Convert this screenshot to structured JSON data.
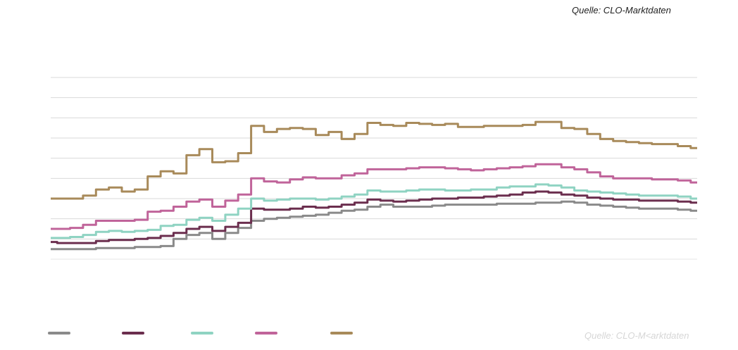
{
  "source_top": "Quelle: CLO-Marktdaten",
  "source_bottom": "Quelle: CLO-M<arktdaten",
  "chart_data": {
    "type": "line",
    "title": "",
    "xlabel": "",
    "ylabel": "",
    "x": [
      0,
      2,
      4,
      6,
      8,
      10,
      12,
      14,
      16,
      18,
      20,
      22,
      24,
      26,
      28,
      30,
      32,
      34,
      36,
      38,
      40,
      42,
      44,
      46,
      48,
      50,
      52,
      54,
      56,
      58,
      60,
      62,
      64,
      66,
      68,
      70,
      72,
      74,
      76,
      78,
      80,
      82,
      84,
      86,
      88,
      90,
      92,
      94,
      96,
      98,
      100
    ],
    "xlim": [
      0,
      100
    ],
    "ylim": [
      0,
      9
    ],
    "grid": true,
    "legend": "bottom-left",
    "series": [
      {
        "color": "#8a8a8a",
        "values": [
          0.5,
          0.5,
          0.5,
          0.5,
          0.55,
          0.55,
          0.55,
          0.6,
          0.6,
          0.65,
          1.0,
          1.2,
          1.3,
          1.0,
          1.3,
          1.55,
          1.9,
          2.0,
          2.05,
          2.1,
          2.15,
          2.2,
          2.3,
          2.4,
          2.45,
          2.6,
          2.7,
          2.6,
          2.6,
          2.6,
          2.65,
          2.7,
          2.7,
          2.7,
          2.7,
          2.75,
          2.75,
          2.75,
          2.8,
          2.8,
          2.85,
          2.8,
          2.7,
          2.65,
          2.6,
          2.55,
          2.5,
          2.5,
          2.5,
          2.45,
          2.4
        ]
      },
      {
        "color": "#6b2e4e",
        "values": [
          0.85,
          0.8,
          0.8,
          0.8,
          0.9,
          0.95,
          0.95,
          1.0,
          1.05,
          1.15,
          1.3,
          1.5,
          1.6,
          1.4,
          1.6,
          1.8,
          2.5,
          2.45,
          2.45,
          2.5,
          2.6,
          2.55,
          2.6,
          2.7,
          2.8,
          2.95,
          2.9,
          2.85,
          2.9,
          2.95,
          3.0,
          3.0,
          3.05,
          3.05,
          3.1,
          3.15,
          3.2,
          3.3,
          3.35,
          3.3,
          3.2,
          3.15,
          3.05,
          3.0,
          2.95,
          2.95,
          2.9,
          2.9,
          2.9,
          2.85,
          2.8
        ]
      },
      {
        "color": "#8fd3c2",
        "values": [
          1.05,
          1.05,
          1.1,
          1.2,
          1.35,
          1.4,
          1.35,
          1.4,
          1.45,
          1.65,
          1.7,
          1.95,
          2.05,
          1.9,
          2.2,
          2.5,
          3.0,
          2.9,
          2.95,
          3.0,
          3.0,
          2.95,
          3.0,
          3.1,
          3.2,
          3.4,
          3.35,
          3.35,
          3.4,
          3.45,
          3.45,
          3.4,
          3.4,
          3.45,
          3.45,
          3.55,
          3.6,
          3.6,
          3.7,
          3.65,
          3.55,
          3.4,
          3.35,
          3.3,
          3.25,
          3.2,
          3.15,
          3.15,
          3.15,
          3.1,
          3.0
        ]
      },
      {
        "color": "#c0649a",
        "values": [
          1.5,
          1.5,
          1.55,
          1.7,
          1.9,
          1.9,
          1.9,
          1.95,
          2.35,
          2.4,
          2.6,
          2.85,
          2.95,
          2.6,
          2.9,
          3.2,
          4.0,
          3.85,
          3.8,
          3.95,
          4.05,
          4.0,
          4.0,
          4.15,
          4.25,
          4.45,
          4.45,
          4.45,
          4.5,
          4.55,
          4.55,
          4.5,
          4.45,
          4.4,
          4.45,
          4.5,
          4.55,
          4.6,
          4.7,
          4.7,
          4.55,
          4.45,
          4.3,
          4.1,
          4.0,
          4.0,
          4.0,
          3.95,
          3.95,
          3.9,
          3.8
        ]
      },
      {
        "color": "#a88a5a",
        "values": [
          3.0,
          3.0,
          3.0,
          3.15,
          3.45,
          3.55,
          3.35,
          3.45,
          4.1,
          4.35,
          4.25,
          5.15,
          5.45,
          4.8,
          4.85,
          5.25,
          6.6,
          6.3,
          6.45,
          6.5,
          6.45,
          6.15,
          6.3,
          5.95,
          6.2,
          6.75,
          6.65,
          6.6,
          6.75,
          6.7,
          6.65,
          6.7,
          6.55,
          6.55,
          6.6,
          6.6,
          6.6,
          6.65,
          6.8,
          6.8,
          6.5,
          6.45,
          6.2,
          5.95,
          5.85,
          5.8,
          5.75,
          5.7,
          5.7,
          5.6,
          5.5
        ]
      }
    ]
  }
}
